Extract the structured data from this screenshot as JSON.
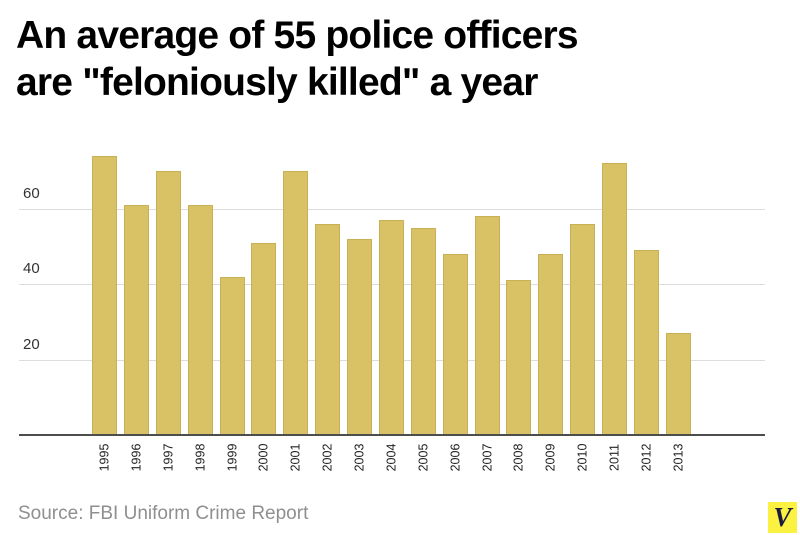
{
  "title": {
    "line1": "An average of 55 police officers",
    "line2": "are \"feloniously killed\" a year"
  },
  "chart_data": {
    "type": "bar",
    "title": "An average of 55 police officers are \"feloniously killed\" a year",
    "categories": [
      "1995",
      "1996",
      "1997",
      "1998",
      "1999",
      "2000",
      "2001",
      "2002",
      "2003",
      "2004",
      "2005",
      "2006",
      "2007",
      "2008",
      "2009",
      "2010",
      "2011",
      "2012",
      "2013"
    ],
    "values": [
      74,
      61,
      70,
      61,
      42,
      51,
      70,
      56,
      52,
      57,
      55,
      48,
      58,
      41,
      48,
      56,
      72,
      49,
      27
    ],
    "xlabel": "",
    "ylabel": "",
    "yticks": [
      20,
      40,
      60
    ],
    "ylim": [
      0,
      79
    ],
    "grid": true,
    "legend": false,
    "x_tick_rotation_deg": -90
  },
  "colors": {
    "background": "#ffffff",
    "title_text": "#000000",
    "bar_fill": "#d9c166",
    "bar_border": "#c9b052",
    "gridline": "#dddddd",
    "axis_line": "#4d4d4d",
    "tick_text": "#222222",
    "y_tick_text": "#333333",
    "source_text": "#8f8f8f",
    "logo_bg": "#fbf141",
    "logo_letter": "#1b1b40"
  },
  "footer": {
    "source": "Source: FBI Uniform Crime Report",
    "logo_letter": "V"
  }
}
